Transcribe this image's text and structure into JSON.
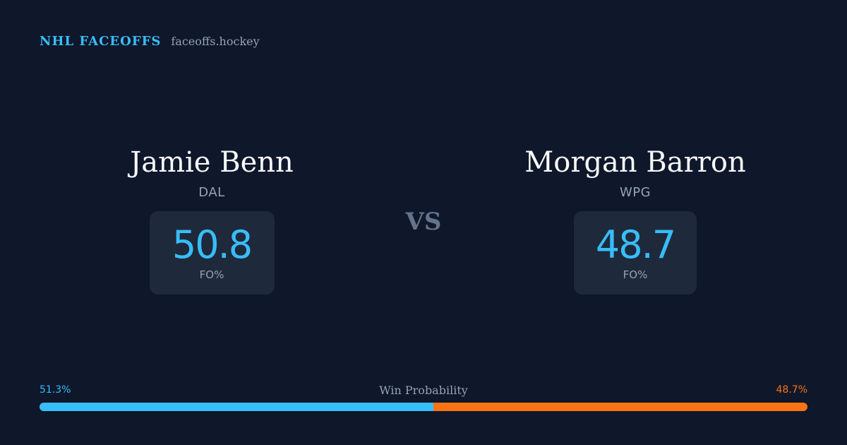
{
  "brand": {
    "title": "NHL FACEOFFS",
    "site": "faceoffs.hockey",
    "accent_color": "#38bdf8"
  },
  "vs_label": "VS",
  "players": {
    "left": {
      "name": "Jamie Benn",
      "team": "DAL",
      "stat_value": "50.8",
      "stat_label": "FO%"
    },
    "right": {
      "name": "Morgan Barron",
      "team": "WPG",
      "stat_value": "48.7",
      "stat_label": "FO%"
    }
  },
  "win_probability": {
    "title": "Win Probability",
    "left_label": "51.3%",
    "right_label": "48.7%",
    "left_value": 51.3,
    "right_value": 48.7,
    "left_color": "#38bdf8",
    "right_color": "#f97316"
  }
}
